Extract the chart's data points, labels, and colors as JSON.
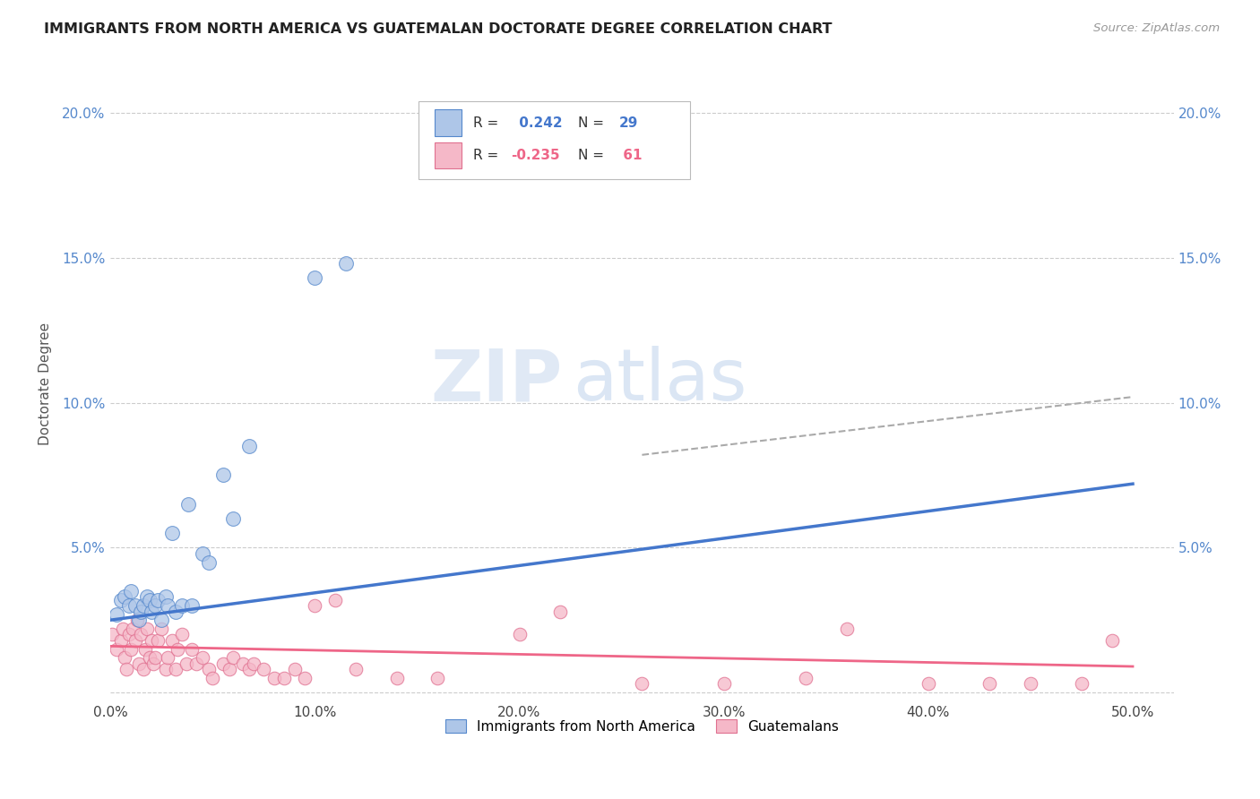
{
  "title": "IMMIGRANTS FROM NORTH AMERICA VS GUATEMALAN DOCTORATE DEGREE CORRELATION CHART",
  "source": "Source: ZipAtlas.com",
  "ylabel": "Doctorate Degree",
  "xlim": [
    0.0,
    0.52
  ],
  "ylim": [
    -0.002,
    0.215
  ],
  "xtick_labels": [
    "0.0%",
    "10.0%",
    "20.0%",
    "30.0%",
    "40.0%",
    "50.0%"
  ],
  "xtick_vals": [
    0.0,
    0.1,
    0.2,
    0.3,
    0.4,
    0.5
  ],
  "ytick_vals": [
    0.0,
    0.05,
    0.1,
    0.15,
    0.2
  ],
  "ytick_labels": [
    "",
    "5.0%",
    "10.0%",
    "15.0%",
    "20.0%"
  ],
  "grid_color": "#cccccc",
  "background_color": "#ffffff",
  "blue_fill": "#aec6e8",
  "blue_edge": "#5588cc",
  "pink_fill": "#f5b8c8",
  "pink_edge": "#e07090",
  "blue_line_color": "#4477cc",
  "pink_line_color": "#ee6688",
  "dashed_line_color": "#aaaaaa",
  "right_axis_color": "#5588cc",
  "legend_R1": " 0.242",
  "legend_N1": "29",
  "legend_R2": "-0.235",
  "legend_N2": " 61",
  "legend_label1": "Immigrants from North America",
  "legend_label2": "Guatemalans",
  "watermark_zip": "ZIP",
  "watermark_atlas": "atlas",
  "blue_scatter_x": [
    0.003,
    0.005,
    0.007,
    0.009,
    0.01,
    0.012,
    0.014,
    0.015,
    0.016,
    0.018,
    0.019,
    0.02,
    0.022,
    0.023,
    0.025,
    0.027,
    0.028,
    0.03,
    0.032,
    0.035,
    0.038,
    0.04,
    0.045,
    0.048,
    0.055,
    0.06,
    0.068,
    0.1,
    0.115
  ],
  "blue_scatter_y": [
    0.027,
    0.032,
    0.033,
    0.03,
    0.035,
    0.03,
    0.025,
    0.028,
    0.03,
    0.033,
    0.032,
    0.028,
    0.03,
    0.032,
    0.025,
    0.033,
    0.03,
    0.055,
    0.028,
    0.03,
    0.065,
    0.03,
    0.048,
    0.045,
    0.075,
    0.06,
    0.085,
    0.143,
    0.148
  ],
  "pink_scatter_x": [
    0.001,
    0.003,
    0.005,
    0.006,
    0.007,
    0.008,
    0.009,
    0.01,
    0.011,
    0.012,
    0.013,
    0.014,
    0.015,
    0.016,
    0.017,
    0.018,
    0.019,
    0.02,
    0.021,
    0.022,
    0.023,
    0.025,
    0.027,
    0.028,
    0.03,
    0.032,
    0.033,
    0.035,
    0.037,
    0.04,
    0.042,
    0.045,
    0.048,
    0.05,
    0.055,
    0.058,
    0.06,
    0.065,
    0.068,
    0.07,
    0.075,
    0.08,
    0.085,
    0.09,
    0.095,
    0.1,
    0.11,
    0.12,
    0.14,
    0.16,
    0.2,
    0.22,
    0.26,
    0.3,
    0.34,
    0.36,
    0.4,
    0.43,
    0.45,
    0.475,
    0.49
  ],
  "pink_scatter_y": [
    0.02,
    0.015,
    0.018,
    0.022,
    0.012,
    0.008,
    0.02,
    0.015,
    0.022,
    0.018,
    0.025,
    0.01,
    0.02,
    0.008,
    0.015,
    0.022,
    0.012,
    0.018,
    0.01,
    0.012,
    0.018,
    0.022,
    0.008,
    0.012,
    0.018,
    0.008,
    0.015,
    0.02,
    0.01,
    0.015,
    0.01,
    0.012,
    0.008,
    0.005,
    0.01,
    0.008,
    0.012,
    0.01,
    0.008,
    0.01,
    0.008,
    0.005,
    0.005,
    0.008,
    0.005,
    0.03,
    0.032,
    0.008,
    0.005,
    0.005,
    0.02,
    0.028,
    0.003,
    0.003,
    0.005,
    0.022,
    0.003,
    0.003,
    0.003,
    0.003,
    0.018
  ],
  "blue_trendline_x": [
    0.0,
    0.5
  ],
  "blue_trendline_y": [
    0.025,
    0.072
  ],
  "pink_trendline_x": [
    0.0,
    0.5
  ],
  "pink_trendline_y": [
    0.016,
    0.009
  ],
  "dashed_trendline_x": [
    0.26,
    0.5
  ],
  "dashed_trendline_y": [
    0.082,
    0.102
  ]
}
